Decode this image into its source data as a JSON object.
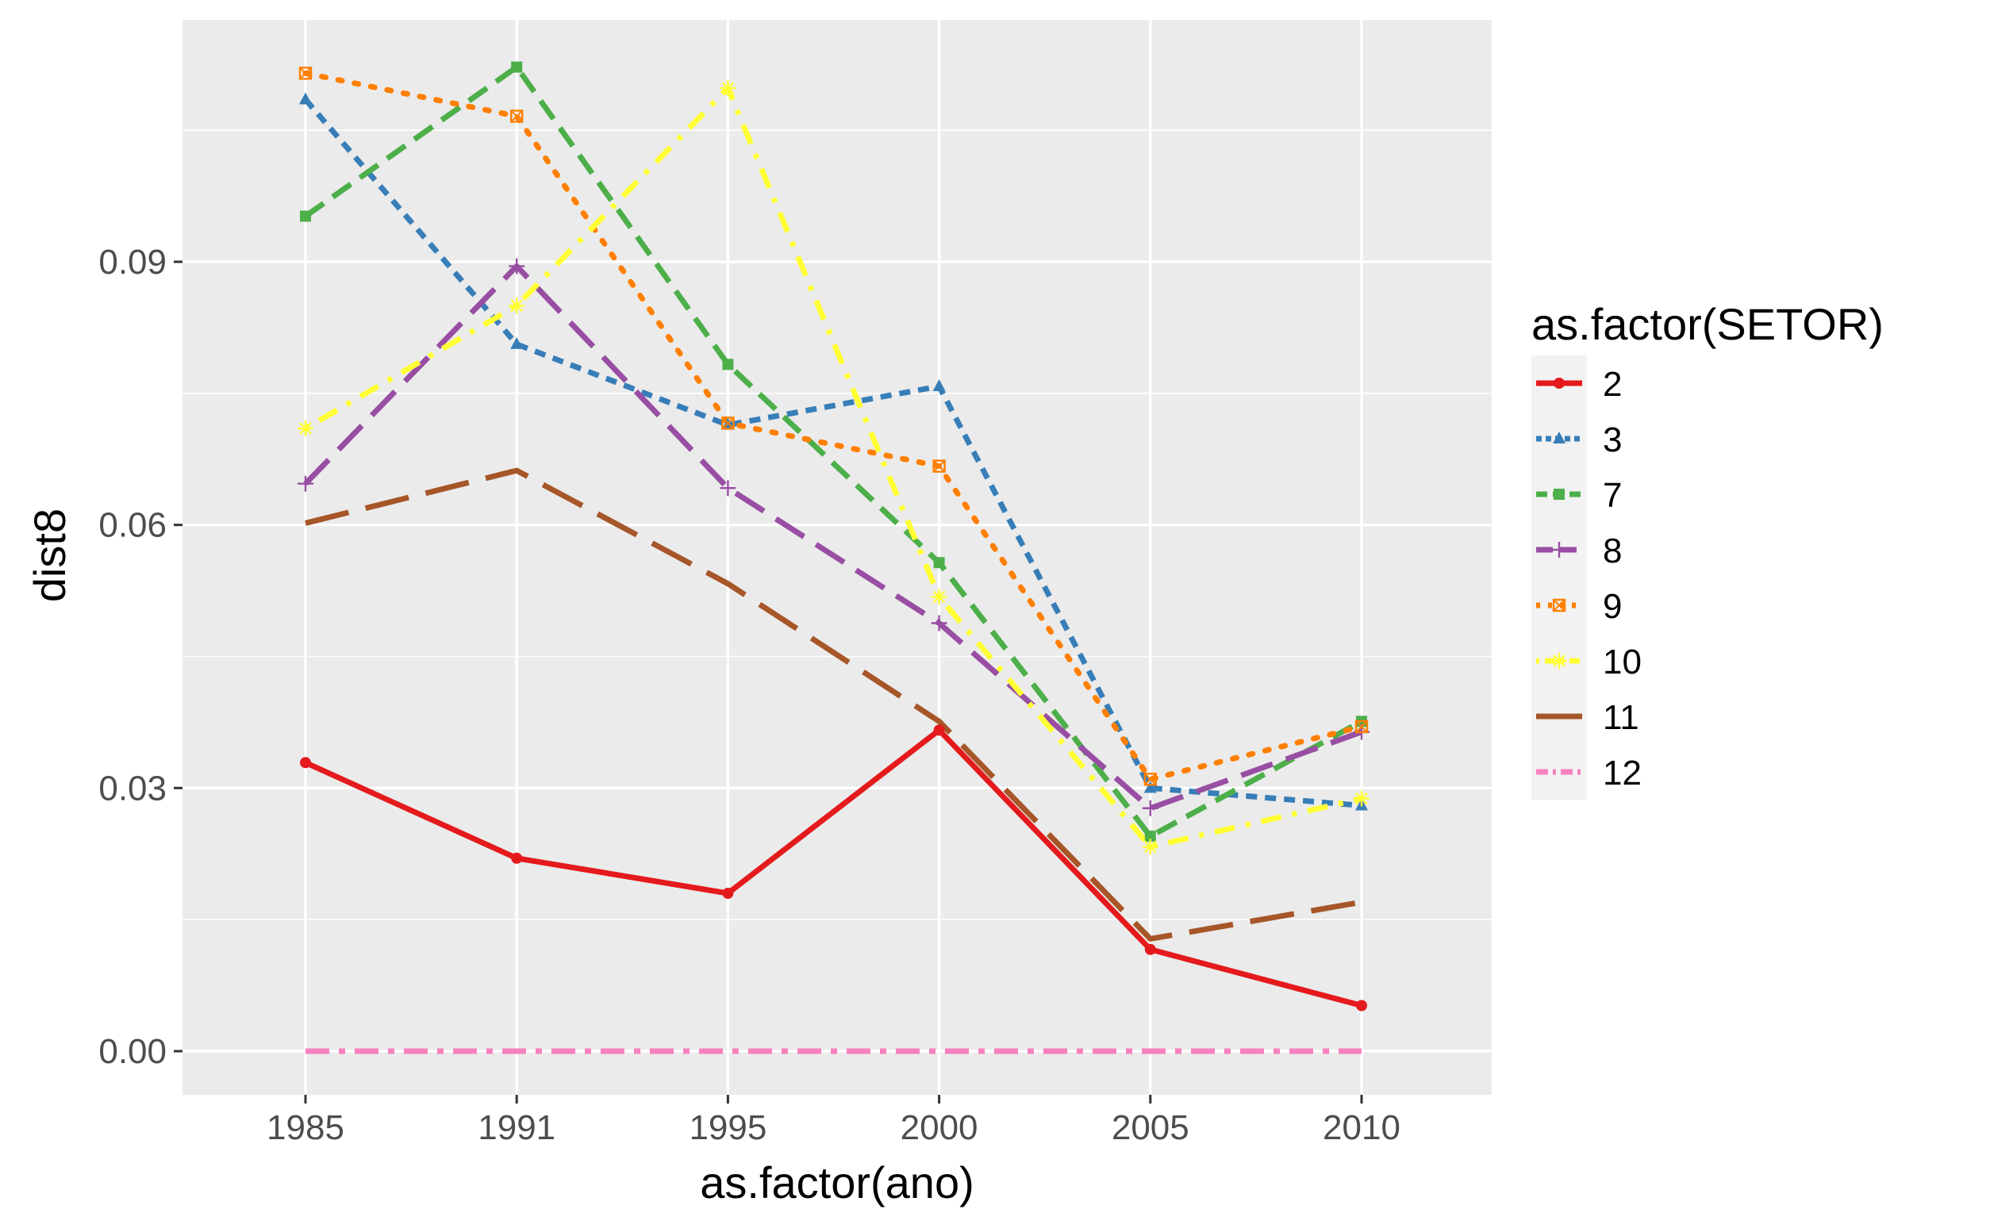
{
  "chart_data": {
    "type": "line",
    "title": "",
    "xlabel": "as.factor(ano)",
    "ylabel": "dist8",
    "categories": [
      "1985",
      "1991",
      "1995",
      "2000",
      "2005",
      "2010"
    ],
    "y_ticks": [
      0.0,
      0.03,
      0.06,
      0.09
    ],
    "y_tick_labels": [
      "0.00",
      "0.03",
      "0.06",
      "0.09"
    ],
    "ylim": [
      -0.0055,
      0.1175
    ],
    "grid": true,
    "legend": {
      "title": "as.factor(SETOR)",
      "position": "right"
    },
    "series": [
      {
        "name": "2",
        "color": "#E41A1C",
        "dash": "solid",
        "marker": "circle",
        "values": [
          0.0329,
          0.022,
          0.018,
          0.0366,
          0.0116,
          0.0052
        ]
      },
      {
        "name": "3",
        "color": "#377EB8",
        "dash": "shortdash",
        "marker": "triangle",
        "values": [
          0.1085,
          0.0806,
          0.0714,
          0.0758,
          0.03,
          0.028
        ]
      },
      {
        "name": "7",
        "color": "#4DAF4A",
        "dash": "dashed",
        "marker": "square",
        "values": [
          0.0952,
          0.1122,
          0.0783,
          0.0557,
          0.0245,
          0.0376
        ]
      },
      {
        "name": "8",
        "color": "#984EA3",
        "dash": "longdash",
        "marker": "plus",
        "values": [
          0.0647,
          0.0895,
          0.0642,
          0.0488,
          0.0277,
          0.0364
        ]
      },
      {
        "name": "9",
        "color": "#FF7F00",
        "dash": "dotted",
        "marker": "squarex",
        "values": [
          0.1115,
          0.1066,
          0.0716,
          0.0667,
          0.031,
          0.037
        ]
      },
      {
        "name": "10",
        "color": "#FFFF33",
        "dash": "dotdash",
        "marker": "asterisk",
        "values": [
          0.071,
          0.085,
          0.1098,
          0.0518,
          0.0233,
          0.0288
        ]
      },
      {
        "name": "11",
        "color": "#A65628",
        "dash": "longdash2",
        "marker": "none",
        "values": [
          0.0602,
          0.0662,
          0.0533,
          0.0376,
          0.0128,
          0.017
        ]
      },
      {
        "name": "12",
        "color": "#F781BF",
        "dash": "twodash",
        "marker": "none",
        "values": [
          0.0,
          0.0,
          0.0,
          0.0,
          0.0,
          0.0
        ]
      }
    ]
  }
}
